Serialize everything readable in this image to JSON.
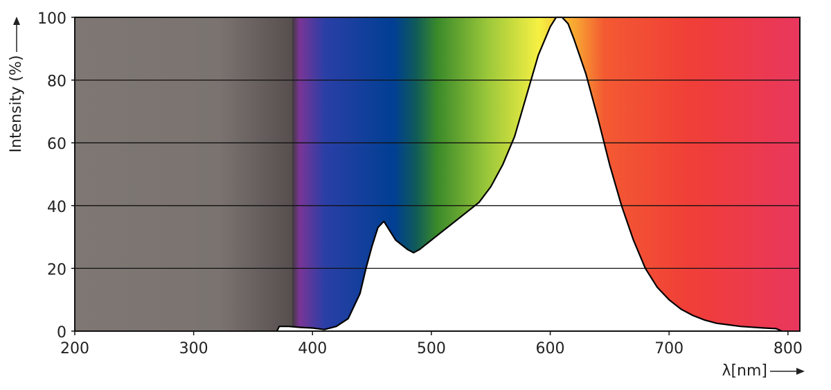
{
  "chart_data": {
    "type": "area",
    "ylabel": "Intensity (%)",
    "xlabel": "λ[nm]",
    "x": [
      370,
      372,
      380,
      390,
      400,
      410,
      420,
      430,
      440,
      445,
      450,
      455,
      460,
      465,
      470,
      480,
      485,
      490,
      500,
      510,
      520,
      530,
      540,
      550,
      560,
      570,
      580,
      590,
      600,
      605,
      610,
      615,
      620,
      630,
      640,
      650,
      660,
      670,
      680,
      690,
      700,
      710,
      720,
      730,
      740,
      750,
      760,
      780,
      790,
      795
    ],
    "values": [
      0,
      1.5,
      1.5,
      1.2,
      1,
      0.5,
      1.5,
      4,
      12,
      20,
      27,
      33,
      35,
      32,
      29,
      26,
      25,
      26,
      29,
      32,
      35,
      38,
      41,
      46,
      53,
      62,
      75,
      88,
      97,
      100,
      100,
      98,
      93,
      82,
      68,
      53,
      40,
      29,
      20,
      14,
      10,
      7,
      5,
      3.5,
      2.5,
      2,
      1.5,
      1,
      0.8,
      0
    ],
    "color": "#000000",
    "fill": "#ffffff",
    "xlim": [
      200,
      810
    ],
    "ylim": [
      0,
      100
    ],
    "xticks": [
      200,
      300,
      400,
      500,
      600,
      700,
      800
    ],
    "yticks": [
      0,
      20,
      40,
      60,
      80,
      100
    ],
    "grid": true
  }
}
